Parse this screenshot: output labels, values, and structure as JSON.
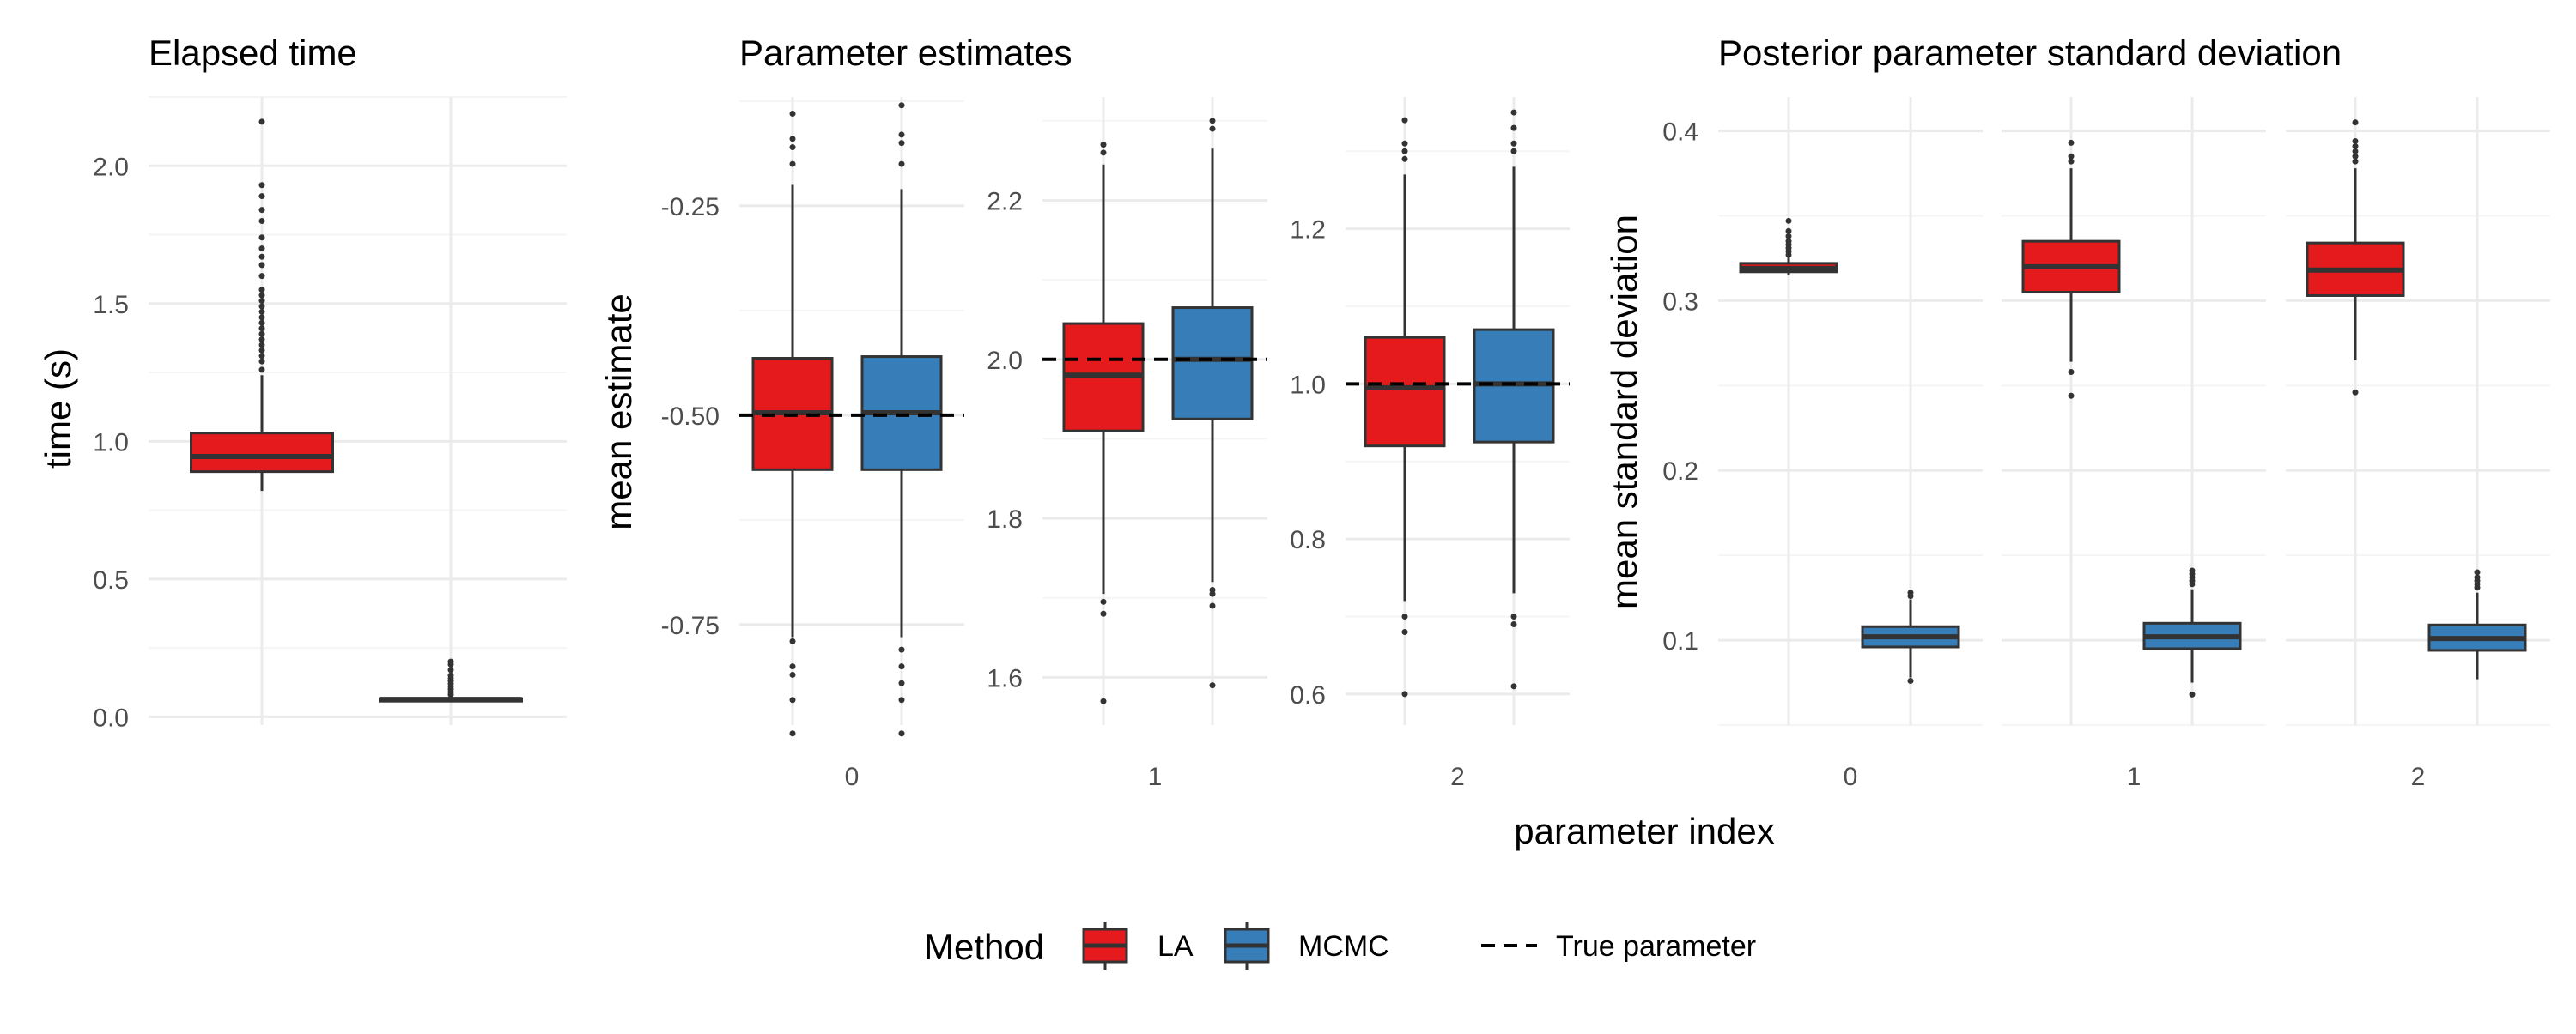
{
  "colors": {
    "LA": "#e41a1c",
    "MCMC": "#377eb8",
    "box_stroke": "#333333",
    "grid_major": "#ebebeb",
    "grid_minor": "#f5f5f5",
    "text": "#000000",
    "tick_text": "#4d4d4d"
  },
  "legend": {
    "title": "Method",
    "items": [
      "LA",
      "MCMC"
    ],
    "true_param_label": "True parameter"
  },
  "axis_titles": {
    "elapsed_y": "time (s)",
    "estimate_y": "mean estimate",
    "sd_y": "mean standard deviation",
    "shared_x": "parameter index"
  },
  "chart_data": [
    {
      "type": "box",
      "title": "Elapsed time",
      "ylabel": "time (s)",
      "xlabel": "",
      "ylim": [
        -0.03,
        2.25
      ],
      "yticks": [
        0.0,
        0.5,
        1.0,
        1.5,
        2.0
      ],
      "ytick_labels": [
        "0.0",
        "0.5",
        "1.0",
        "1.5",
        "2.0"
      ],
      "facets": [
        {
          "label": "",
          "boxes": [
            {
              "method": "LA",
              "q1": 0.89,
              "median": 0.945,
              "q3": 1.03,
              "whisker_low": 0.82,
              "whisker_high": 1.24,
              "outliers": [
                1.26,
                1.29,
                1.31,
                1.33,
                1.35,
                1.37,
                1.39,
                1.41,
                1.43,
                1.45,
                1.47,
                1.49,
                1.51,
                1.53,
                1.55,
                1.6,
                1.64,
                1.67,
                1.7,
                1.74,
                1.8,
                1.84,
                1.89,
                1.93,
                2.16
              ]
            },
            {
              "method": "MCMC",
              "q1": 0.06,
              "median": 0.063,
              "q3": 0.066,
              "whisker_low": 0.055,
              "whisker_high": 0.075,
              "outliers": [
                0.08,
                0.09,
                0.1,
                0.11,
                0.12,
                0.13,
                0.14,
                0.15,
                0.17,
                0.19,
                0.2
              ]
            }
          ]
        }
      ]
    },
    {
      "type": "box",
      "title": "Parameter estimates",
      "ylabel": "mean estimate",
      "xlabel": "parameter index",
      "facets": [
        {
          "label": "0",
          "true_value": -0.5,
          "ylim": [
            -0.87,
            -0.12
          ],
          "yticks": [
            -0.25,
            -0.5,
            -0.75
          ],
          "ytick_labels": [
            "-0.25",
            "-0.50",
            "-0.75"
          ],
          "boxes": [
            {
              "method": "LA",
              "q1": -0.565,
              "median": -0.497,
              "q3": -0.432,
              "whisker_low": -0.765,
              "whisker_high": -0.225,
              "outliers": [
                -0.14,
                -0.17,
                -0.18,
                -0.2,
                -0.77,
                -0.8,
                -0.81,
                -0.84,
                -0.88
              ]
            },
            {
              "method": "MCMC",
              "q1": -0.565,
              "median": -0.497,
              "q3": -0.43,
              "whisker_low": -0.765,
              "whisker_high": -0.23,
              "outliers": [
                -0.13,
                -0.165,
                -0.175,
                -0.2,
                -0.78,
                -0.8,
                -0.82,
                -0.84,
                -0.88
              ]
            }
          ]
        },
        {
          "label": "1",
          "true_value": 2.0,
          "ylim": [
            1.54,
            2.33
          ],
          "yticks": [
            1.6,
            1.8,
            2.0,
            2.2
          ],
          "ytick_labels": [
            "1.6",
            "1.8",
            "2.0",
            "2.2"
          ],
          "boxes": [
            {
              "method": "LA",
              "q1": 1.91,
              "median": 1.98,
              "q3": 2.045,
              "whisker_low": 1.705,
              "whisker_high": 2.245,
              "outliers": [
                2.26,
                2.27,
                1.695,
                1.68,
                1.57
              ]
            },
            {
              "method": "MCMC",
              "q1": 1.925,
              "median": 2.0,
              "q3": 2.065,
              "whisker_low": 1.72,
              "whisker_high": 2.265,
              "outliers": [
                2.29,
                2.3,
                1.71,
                1.705,
                1.69,
                1.59
              ]
            }
          ]
        },
        {
          "label": "2",
          "true_value": 1.0,
          "ylim": [
            0.56,
            1.37
          ],
          "yticks": [
            0.6,
            0.8,
            1.0,
            1.2
          ],
          "ytick_labels": [
            "0.6",
            "0.8",
            "1.0",
            "1.2"
          ],
          "boxes": [
            {
              "method": "LA",
              "q1": 0.92,
              "median": 0.995,
              "q3": 1.06,
              "whisker_low": 0.72,
              "whisker_high": 1.27,
              "outliers": [
                1.29,
                1.3,
                1.31,
                1.34,
                0.7,
                0.68,
                0.6
              ]
            },
            {
              "method": "MCMC",
              "q1": 0.925,
              "median": 1.0,
              "q3": 1.07,
              "whisker_low": 0.73,
              "whisker_high": 1.28,
              "outliers": [
                1.3,
                1.31,
                1.33,
                1.35,
                0.7,
                0.69,
                0.61
              ]
            }
          ]
        }
      ]
    },
    {
      "type": "box",
      "title": "Posterior parameter standard deviation",
      "ylabel": "mean standard deviation",
      "xlabel": "parameter index",
      "ylim": [
        0.05,
        0.42
      ],
      "yticks": [
        0.1,
        0.2,
        0.3,
        0.4
      ],
      "ytick_labels": [
        "0.1",
        "0.2",
        "0.3",
        "0.4"
      ],
      "facets": [
        {
          "label": "0",
          "boxes": [
            {
              "method": "LA",
              "q1": 0.317,
              "median": 0.319,
              "q3": 0.322,
              "whisker_low": 0.315,
              "whisker_high": 0.326,
              "outliers": [
                0.327,
                0.329,
                0.331,
                0.333,
                0.335,
                0.338,
                0.341,
                0.347
              ]
            },
            {
              "method": "MCMC",
              "q1": 0.096,
              "median": 0.102,
              "q3": 0.108,
              "whisker_low": 0.078,
              "whisker_high": 0.124,
              "outliers": [
                0.126,
                0.128,
                0.076
              ]
            }
          ]
        },
        {
          "label": "1",
          "boxes": [
            {
              "method": "LA",
              "q1": 0.305,
              "median": 0.32,
              "q3": 0.335,
              "whisker_low": 0.264,
              "whisker_high": 0.378,
              "outliers": [
                0.382,
                0.385,
                0.393,
                0.258,
                0.244
              ]
            },
            {
              "method": "MCMC",
              "q1": 0.095,
              "median": 0.102,
              "q3": 0.11,
              "whisker_low": 0.075,
              "whisker_high": 0.13,
              "outliers": [
                0.133,
                0.135,
                0.137,
                0.139,
                0.141,
                0.068
              ]
            }
          ]
        },
        {
          "label": "2",
          "boxes": [
            {
              "method": "LA",
              "q1": 0.303,
              "median": 0.318,
              "q3": 0.334,
              "whisker_low": 0.265,
              "whisker_high": 0.378,
              "outliers": [
                0.382,
                0.385,
                0.388,
                0.391,
                0.394,
                0.405,
                0.246
              ]
            },
            {
              "method": "MCMC",
              "q1": 0.094,
              "median": 0.101,
              "q3": 0.109,
              "whisker_low": 0.077,
              "whisker_high": 0.128,
              "outliers": [
                0.131,
                0.133,
                0.135,
                0.137,
                0.14
              ]
            }
          ]
        }
      ]
    }
  ]
}
